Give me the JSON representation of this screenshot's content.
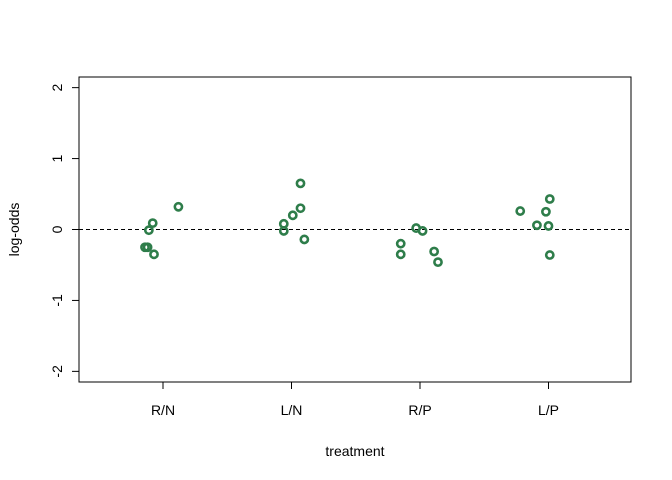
{
  "chart_data": {
    "type": "scatter",
    "title": "",
    "xlabel": "treatment",
    "ylabel": "log-odds",
    "ylim": [
      -2.15,
      2.15
    ],
    "yticks": [
      -2,
      -1,
      0,
      1,
      2
    ],
    "ytick_labels": [
      "-2",
      "-1",
      "0",
      "1",
      "2"
    ],
    "categories": [
      "R/N",
      "L/N",
      "R/P",
      "L/P"
    ],
    "reference_line": {
      "y": 0,
      "style": "dashed"
    },
    "grid": false,
    "legend": "none",
    "point_color": "#2e7d4a",
    "series": [
      {
        "values": [
          {
            "category": "R/N",
            "jitter": -0.14,
            "y": -0.25
          },
          {
            "category": "R/N",
            "jitter": -0.12,
            "y": -0.25
          },
          {
            "category": "R/N",
            "jitter": -0.11,
            "y": -0.01
          },
          {
            "category": "R/N",
            "jitter": -0.08,
            "y": 0.09
          },
          {
            "category": "R/N",
            "jitter": -0.07,
            "y": -0.35
          },
          {
            "category": "R/N",
            "jitter": 0.12,
            "y": 0.32
          },
          {
            "category": "L/N",
            "jitter": -0.06,
            "y": -0.02
          },
          {
            "category": "L/N",
            "jitter": -0.06,
            "y": 0.08
          },
          {
            "category": "L/N",
            "jitter": 0.01,
            "y": 0.2
          },
          {
            "category": "L/N",
            "jitter": 0.07,
            "y": 0.3
          },
          {
            "category": "L/N",
            "jitter": 0.07,
            "y": 0.65
          },
          {
            "category": "L/N",
            "jitter": 0.1,
            "y": -0.14
          },
          {
            "category": "R/P",
            "jitter": -0.15,
            "y": -0.2
          },
          {
            "category": "R/P",
            "jitter": -0.15,
            "y": -0.35
          },
          {
            "category": "R/P",
            "jitter": -0.03,
            "y": 0.02
          },
          {
            "category": "R/P",
            "jitter": 0.02,
            "y": -0.02
          },
          {
            "category": "R/P",
            "jitter": 0.11,
            "y": -0.31
          },
          {
            "category": "R/P",
            "jitter": 0.14,
            "y": -0.46
          },
          {
            "category": "L/P",
            "jitter": -0.22,
            "y": 0.26
          },
          {
            "category": "L/P",
            "jitter": -0.09,
            "y": 0.06
          },
          {
            "category": "L/P",
            "jitter": -0.02,
            "y": 0.25
          },
          {
            "category": "L/P",
            "jitter": 0.0,
            "y": 0.05
          },
          {
            "category": "L/P",
            "jitter": 0.01,
            "y": 0.43
          },
          {
            "category": "L/P",
            "jitter": 0.01,
            "y": -0.36
          }
        ]
      }
    ]
  }
}
